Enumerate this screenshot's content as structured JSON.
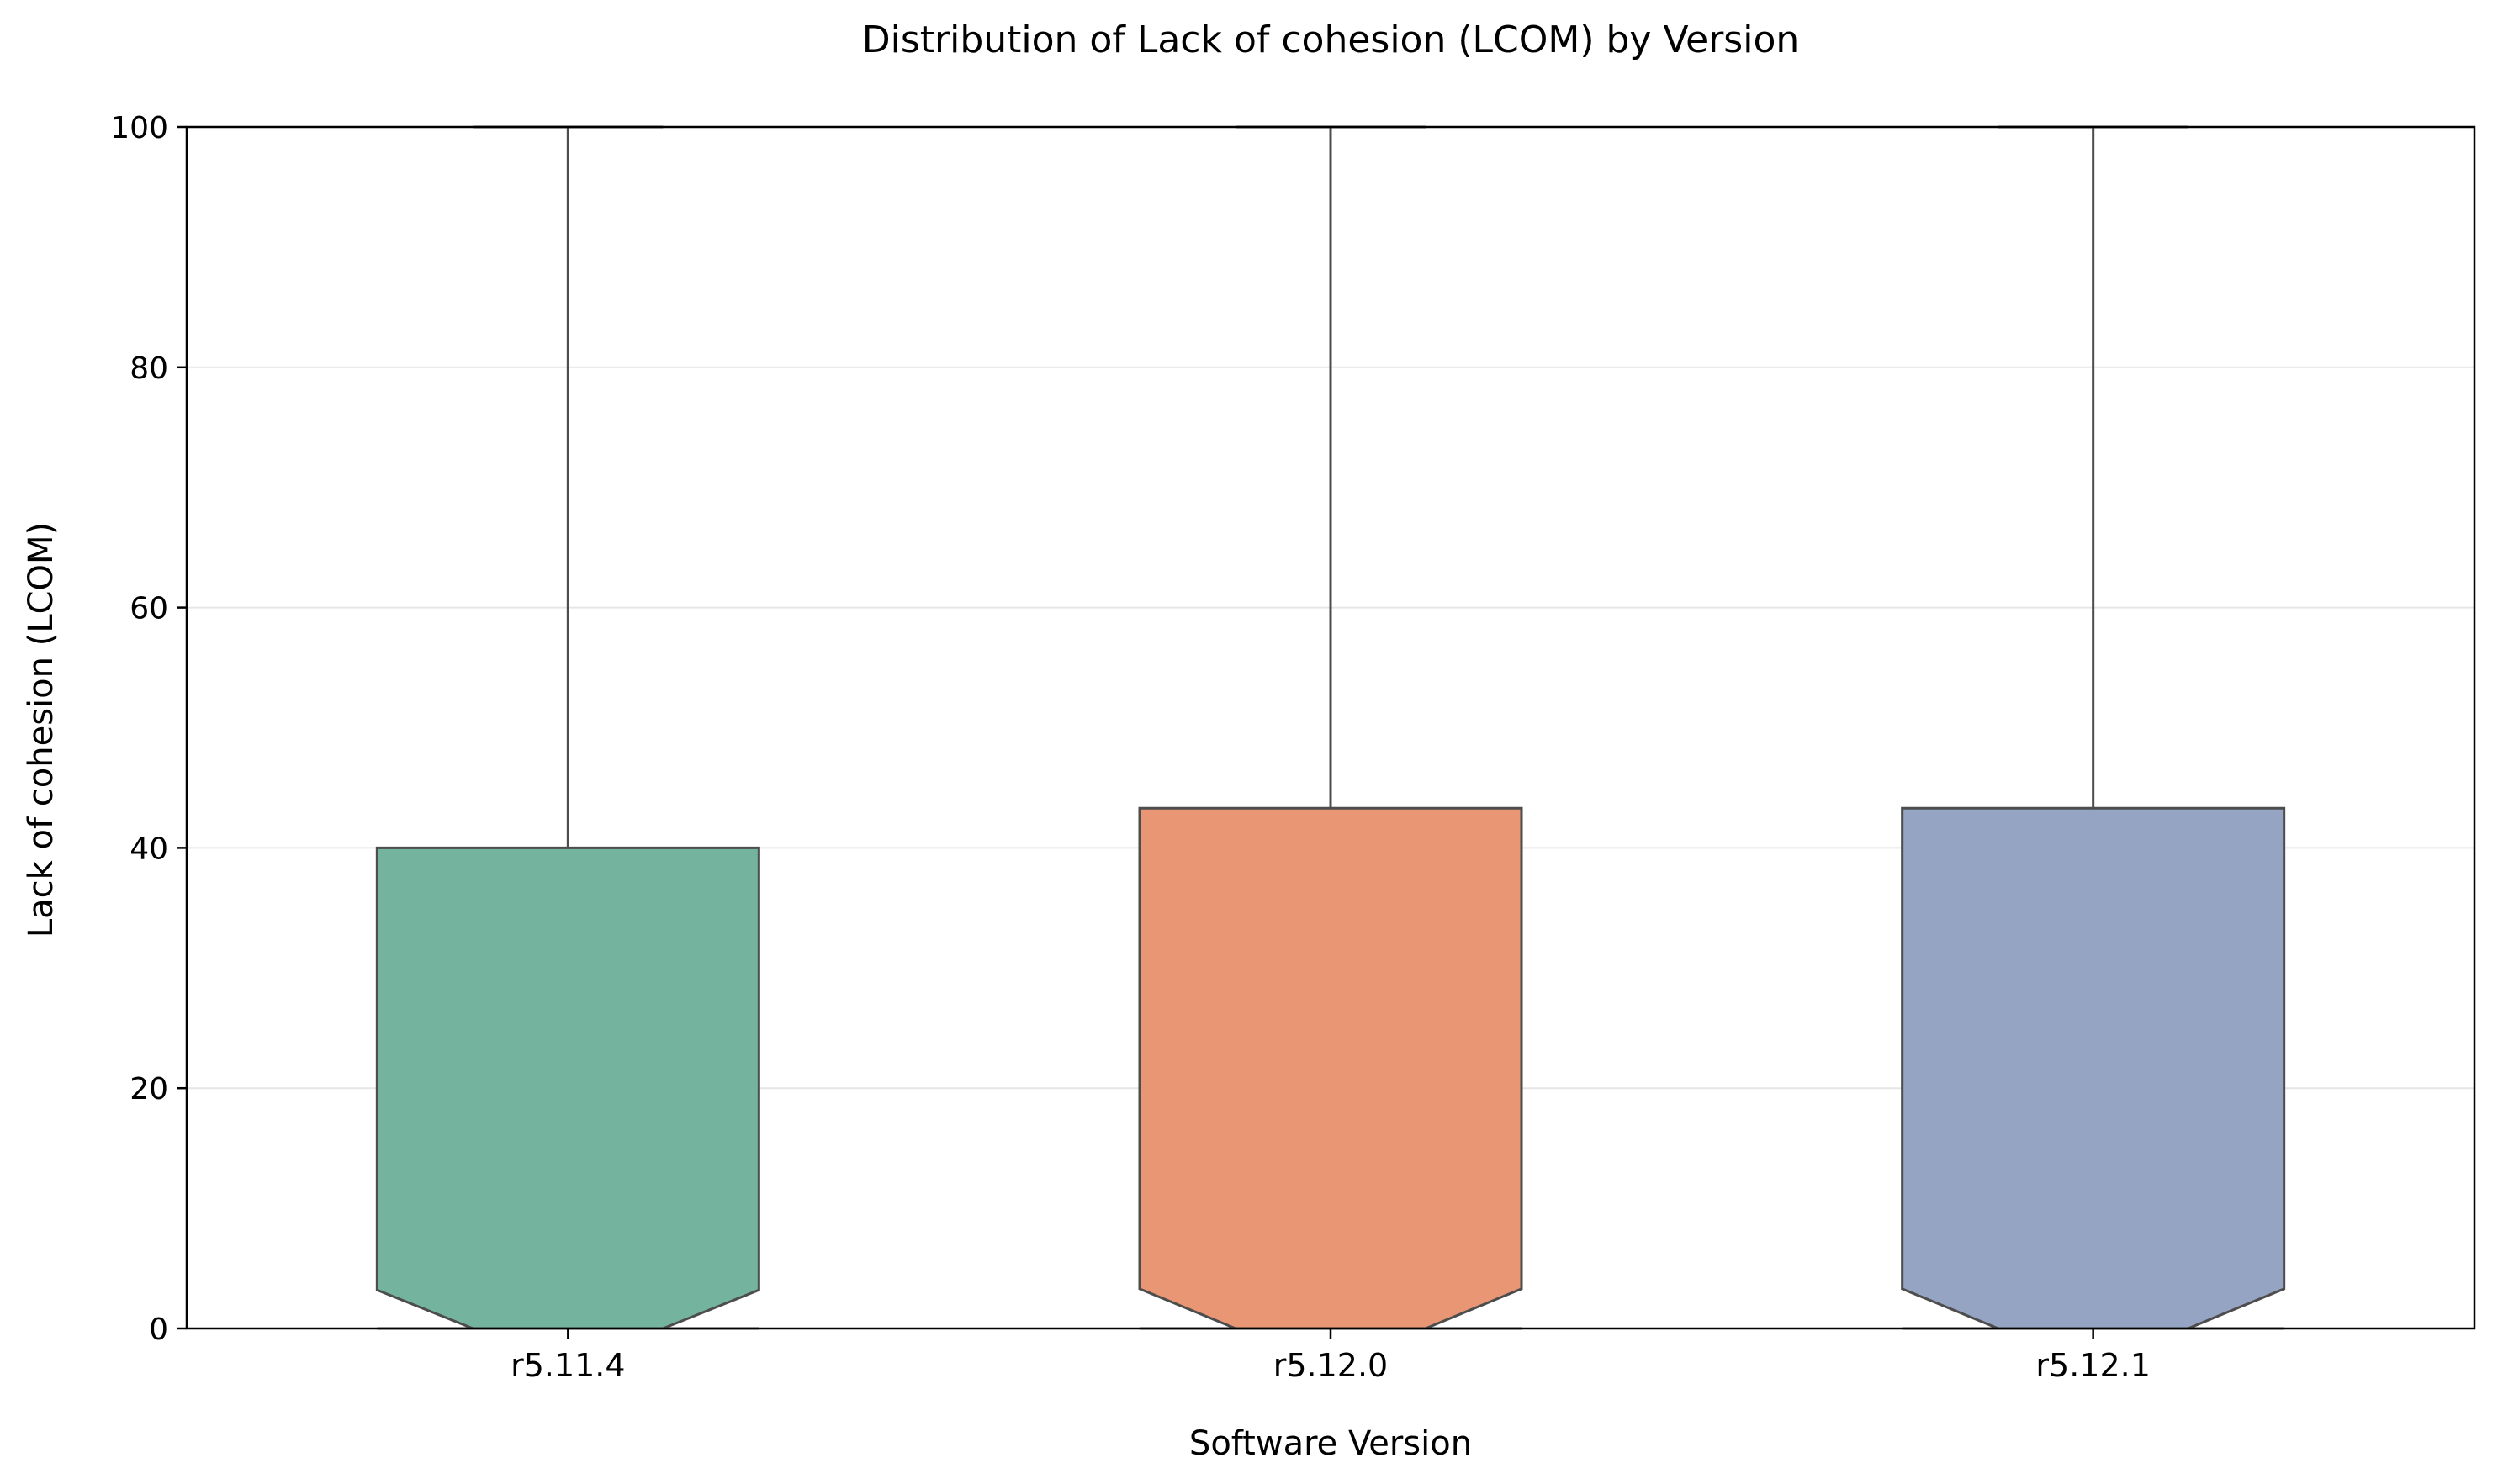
{
  "chart_data": {
    "type": "boxplot",
    "title": "Distribution of Lack of cohesion (LCOM) by Version",
    "xlabel": "Software Version",
    "ylabel": "Lack of cohesion (LCOM)",
    "ylim": [
      0,
      100
    ],
    "yticks": [
      0,
      20,
      40,
      60,
      80,
      100
    ],
    "grid": "y",
    "notched": true,
    "categories": [
      "r5.11.4",
      "r5.12.0",
      "r5.12.1"
    ],
    "boxes": [
      {
        "category": "r5.11.4",
        "whisker_low": 0,
        "q1": 0,
        "median": 0,
        "q3": 40.0,
        "whisker_high": 100,
        "notch_low": 0,
        "notch_high": 3.2,
        "color": "#74b49f"
      },
      {
        "category": "r5.12.0",
        "whisker_low": 0,
        "q1": 0,
        "median": 0,
        "q3": 43.3,
        "whisker_high": 100,
        "notch_low": 0,
        "notch_high": 3.3,
        "color": "#e89674"
      },
      {
        "category": "r5.12.1",
        "whisker_low": 0,
        "q1": 0,
        "median": 0,
        "q3": 43.3,
        "whisker_high": 100,
        "notch_low": 0,
        "notch_high": 3.3,
        "color": "#95a4c2"
      }
    ],
    "colors": {
      "grid": "#e6e6e6",
      "edge": "#4d4d4d",
      "axis": "#000000"
    }
  }
}
